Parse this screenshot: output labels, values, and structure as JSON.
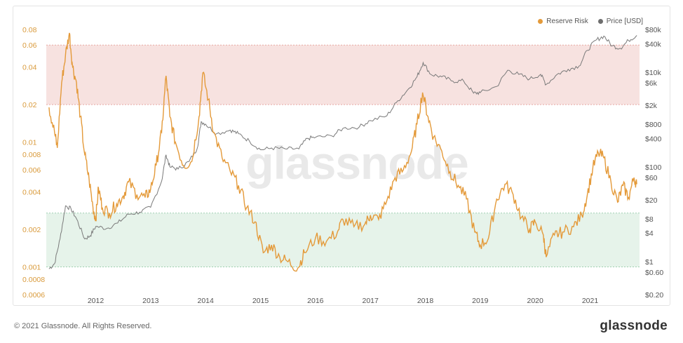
{
  "chart_data": {
    "type": "line",
    "title": "",
    "legend": [
      {
        "name": "Reserve Risk",
        "color": "#e49a3a"
      },
      {
        "name": "Price [USD]",
        "color": "#7a7a7a"
      }
    ],
    "legend_position": "top-right",
    "x_ticks": [
      "2012",
      "2013",
      "2014",
      "2015",
      "2016",
      "2017",
      "2018",
      "2019",
      "2020",
      "2021"
    ],
    "y_left": {
      "scale": "log",
      "ticks": [
        "0.08",
        "0.06",
        "0.04",
        "0.02",
        "0.01",
        "0.008",
        "0.006",
        "0.004",
        "0.002",
        "0.001",
        "0.0008",
        "0.0006"
      ],
      "tick_values": [
        0.08,
        0.06,
        0.04,
        0.02,
        0.01,
        0.008,
        0.006,
        0.004,
        0.002,
        0.001,
        0.0008,
        0.0006
      ],
      "range": [
        0.0006,
        0.08
      ]
    },
    "y_right": {
      "scale": "log",
      "ticks": [
        "$80k",
        "$40k",
        "$10k",
        "$6k",
        "$2k",
        "$800",
        "$400",
        "$100",
        "$60",
        "$20",
        "$8",
        "$4",
        "$1",
        "$0.60",
        "$0.20"
      ],
      "tick_values": [
        80000,
        40000,
        10000,
        6000,
        2000,
        800,
        400,
        100,
        60,
        20,
        8,
        4,
        1,
        0.6,
        0.2
      ],
      "range": [
        0.2,
        80000
      ]
    },
    "bands": [
      {
        "name": "high-risk-zone",
        "from": 0.02,
        "to": 0.06,
        "color": "#f7e2e0"
      },
      {
        "name": "low-risk-zone",
        "from": 0.001,
        "to": 0.0027,
        "color": "#e6f3ea"
      }
    ],
    "grid": false,
    "series": [
      {
        "name": "Reserve Risk",
        "color": "#e49a3a",
        "axis": "left",
        "points": [
          [
            2011.15,
            0.019
          ],
          [
            2011.25,
            0.012
          ],
          [
            2011.3,
            0.009
          ],
          [
            2011.38,
            0.03
          ],
          [
            2011.45,
            0.05
          ],
          [
            2011.52,
            0.075
          ],
          [
            2011.58,
            0.04
          ],
          [
            2011.65,
            0.03
          ],
          [
            2011.72,
            0.016
          ],
          [
            2011.8,
            0.008
          ],
          [
            2011.88,
            0.005
          ],
          [
            2011.95,
            0.003
          ],
          [
            2012.0,
            0.0024
          ],
          [
            2012.05,
            0.0043
          ],
          [
            2012.12,
            0.003
          ],
          [
            2012.25,
            0.0027
          ],
          [
            2012.38,
            0.0032
          ],
          [
            2012.5,
            0.0037
          ],
          [
            2012.6,
            0.0048
          ],
          [
            2012.75,
            0.0038
          ],
          [
            2012.9,
            0.0036
          ],
          [
            2013.0,
            0.0042
          ],
          [
            2013.1,
            0.0065
          ],
          [
            2013.2,
            0.012
          ],
          [
            2013.28,
            0.034
          ],
          [
            2013.35,
            0.016
          ],
          [
            2013.45,
            0.01
          ],
          [
            2013.6,
            0.0065
          ],
          [
            2013.75,
            0.007
          ],
          [
            2013.88,
            0.016
          ],
          [
            2013.95,
            0.036
          ],
          [
            2014.05,
            0.022
          ],
          [
            2014.15,
            0.012
          ],
          [
            2014.3,
            0.0075
          ],
          [
            2014.45,
            0.0058
          ],
          [
            2014.6,
            0.0045
          ],
          [
            2014.75,
            0.003
          ],
          [
            2014.9,
            0.0023
          ],
          [
            2015.05,
            0.0013
          ],
          [
            2015.2,
            0.0015
          ],
          [
            2015.35,
            0.0012
          ],
          [
            2015.5,
            0.0011
          ],
          [
            2015.68,
            0.00098
          ],
          [
            2015.8,
            0.0013
          ],
          [
            2016.0,
            0.0017
          ],
          [
            2016.2,
            0.0016
          ],
          [
            2016.4,
            0.0019
          ],
          [
            2016.5,
            0.0024
          ],
          [
            2016.7,
            0.0021
          ],
          [
            2016.9,
            0.0022
          ],
          [
            2017.0,
            0.0026
          ],
          [
            2017.15,
            0.0024
          ],
          [
            2017.3,
            0.0034
          ],
          [
            2017.45,
            0.0052
          ],
          [
            2017.6,
            0.006
          ],
          [
            2017.75,
            0.0085
          ],
          [
            2017.85,
            0.014
          ],
          [
            2017.95,
            0.025
          ],
          [
            2018.05,
            0.016
          ],
          [
            2018.15,
            0.011
          ],
          [
            2018.3,
            0.0085
          ],
          [
            2018.45,
            0.0058
          ],
          [
            2018.6,
            0.0045
          ],
          [
            2018.75,
            0.0035
          ],
          [
            2018.9,
            0.0019
          ],
          [
            2019.0,
            0.0015
          ],
          [
            2019.15,
            0.0017
          ],
          [
            2019.3,
            0.0035
          ],
          [
            2019.45,
            0.0046
          ],
          [
            2019.6,
            0.0038
          ],
          [
            2019.75,
            0.0025
          ],
          [
            2019.9,
            0.002
          ],
          [
            2020.0,
            0.0023
          ],
          [
            2020.15,
            0.0018
          ],
          [
            2020.2,
            0.0012
          ],
          [
            2020.35,
            0.0018
          ],
          [
            2020.5,
            0.0019
          ],
          [
            2020.7,
            0.0021
          ],
          [
            2020.85,
            0.0026
          ],
          [
            2020.95,
            0.0038
          ],
          [
            2021.05,
            0.0062
          ],
          [
            2021.15,
            0.0082
          ],
          [
            2021.25,
            0.0075
          ],
          [
            2021.38,
            0.0048
          ],
          [
            2021.5,
            0.0033
          ],
          [
            2021.6,
            0.0045
          ],
          [
            2021.7,
            0.0036
          ],
          [
            2021.8,
            0.0052
          ],
          [
            2021.85,
            0.0046
          ]
        ]
      },
      {
        "name": "Price [USD]",
        "color": "#7a7a7a",
        "axis": "right",
        "points": [
          [
            2011.15,
            0.7
          ],
          [
            2011.25,
            0.9
          ],
          [
            2011.35,
            3
          ],
          [
            2011.45,
            15
          ],
          [
            2011.55,
            13
          ],
          [
            2011.65,
            8
          ],
          [
            2011.8,
            3
          ],
          [
            2011.9,
            3.5
          ],
          [
            2012.0,
            5.5
          ],
          [
            2012.2,
            5
          ],
          [
            2012.4,
            6.5
          ],
          [
            2012.6,
            10
          ],
          [
            2012.8,
            11
          ],
          [
            2013.0,
            14
          ],
          [
            2013.2,
            50
          ],
          [
            2013.28,
            180
          ],
          [
            2013.35,
            100
          ],
          [
            2013.5,
            90
          ],
          [
            2013.7,
            130
          ],
          [
            2013.85,
            250
          ],
          [
            2013.92,
            900
          ],
          [
            2014.0,
            800
          ],
          [
            2014.2,
            500
          ],
          [
            2014.45,
            600
          ],
          [
            2014.6,
            500
          ],
          [
            2014.8,
            350
          ],
          [
            2015.0,
            230
          ],
          [
            2015.2,
            250
          ],
          [
            2015.45,
            240
          ],
          [
            2015.7,
            240
          ],
          [
            2015.85,
            400
          ],
          [
            2016.0,
            420
          ],
          [
            2016.3,
            450
          ],
          [
            2016.5,
            650
          ],
          [
            2016.8,
            700
          ],
          [
            2017.0,
            950
          ],
          [
            2017.3,
            1200
          ],
          [
            2017.5,
            2500
          ],
          [
            2017.7,
            4500
          ],
          [
            2017.85,
            8000
          ],
          [
            2017.96,
            16000
          ],
          [
            2018.1,
            9000
          ],
          [
            2018.3,
            8000
          ],
          [
            2018.5,
            6500
          ],
          [
            2018.7,
            6500
          ],
          [
            2018.88,
            3600
          ],
          [
            2019.0,
            3700
          ],
          [
            2019.3,
            5000
          ],
          [
            2019.5,
            11000
          ],
          [
            2019.7,
            9000
          ],
          [
            2019.9,
            7200
          ],
          [
            2020.1,
            9000
          ],
          [
            2020.2,
            5500
          ],
          [
            2020.4,
            9000
          ],
          [
            2020.6,
            11500
          ],
          [
            2020.8,
            13500
          ],
          [
            2020.95,
            29000
          ],
          [
            2021.1,
            47000
          ],
          [
            2021.25,
            58000
          ],
          [
            2021.4,
            36000
          ],
          [
            2021.55,
            32000
          ],
          [
            2021.7,
            47000
          ],
          [
            2021.85,
            60000
          ]
        ]
      }
    ]
  },
  "watermark": "glassnode",
  "footer": {
    "copyright": "© 2021 Glassnode. All Rights Reserved.",
    "brand": "glassnode"
  }
}
